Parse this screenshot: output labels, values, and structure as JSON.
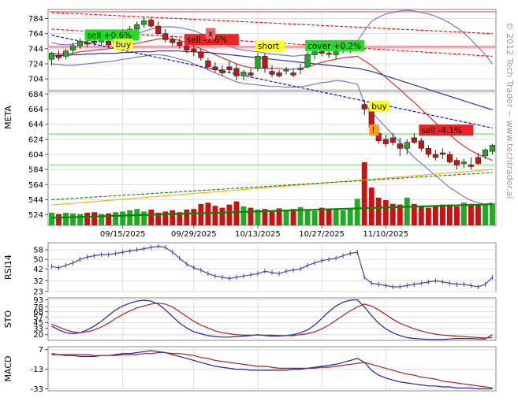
{
  "chart_data": [
    {
      "type": "candlestick",
      "ylabel": "META",
      "y_ticks": [
        524,
        544,
        564,
        584,
        604,
        624,
        644,
        664,
        684,
        704,
        724,
        744,
        764,
        784
      ],
      "ylim": [
        510,
        796
      ],
      "x_tick_labels": [
        "09/15/2025",
        "09/29/2025",
        "10/13/2025",
        "10/27/2025",
        "11/10/2025"
      ],
      "x_tick_bar_index": [
        10,
        20,
        29,
        38,
        47
      ],
      "ohlc": [
        [
          730,
          740,
          722,
          738
        ],
        [
          735,
          742,
          728,
          732
        ],
        [
          734,
          744,
          730,
          741
        ],
        [
          742,
          752,
          738,
          748
        ],
        [
          748,
          758,
          744,
          754
        ],
        [
          752,
          756,
          746,
          750
        ],
        [
          754,
          758,
          748,
          752
        ],
        [
          753,
          760,
          748,
          756
        ],
        [
          754,
          758,
          746,
          749
        ],
        [
          750,
          762,
          748,
          760
        ],
        [
          760,
          770,
          756,
          768
        ],
        [
          766,
          774,
          762,
          770
        ],
        [
          770,
          780,
          766,
          776
        ],
        [
          776,
          786,
          772,
          781
        ],
        [
          782,
          786,
          772,
          774
        ],
        [
          774,
          780,
          762,
          764
        ],
        [
          764,
          770,
          752,
          756
        ],
        [
          756,
          762,
          748,
          752
        ],
        [
          753,
          758,
          744,
          748
        ],
        [
          748,
          752,
          738,
          742
        ],
        [
          744,
          748,
          734,
          740
        ],
        [
          740,
          744,
          728,
          732
        ],
        [
          728,
          732,
          716,
          720
        ],
        [
          720,
          726,
          712,
          716
        ],
        [
          716,
          722,
          708,
          712
        ],
        [
          720,
          728,
          712,
          716
        ],
        [
          718,
          724,
          702,
          708
        ],
        [
          708,
          716,
          702,
          713
        ],
        [
          712,
          718,
          706,
          709
        ],
        [
          718,
          738,
          714,
          734
        ],
        [
          734,
          738,
          712,
          718
        ],
        [
          714,
          722,
          706,
          710
        ],
        [
          712,
          716,
          706,
          708
        ],
        [
          716,
          720,
          710,
          716
        ],
        [
          712,
          718,
          706,
          709
        ],
        [
          716,
          724,
          710,
          718
        ],
        [
          720,
          740,
          718,
          736
        ],
        [
          736,
          742,
          730,
          740
        ],
        [
          740,
          744,
          734,
          738
        ],
        [
          738,
          742,
          732,
          737
        ],
        [
          736,
          742,
          730,
          740
        ],
        [
          742,
          748,
          738,
          744
        ],
        [
          744,
          750,
          738,
          746
        ],
        [
          746,
          750,
          742,
          748
        ],
        [
          670,
          676,
          656,
          664
        ],
        [
          664,
          668,
          636,
          640
        ],
        [
          632,
          640,
          618,
          622
        ],
        [
          624,
          630,
          614,
          618
        ],
        [
          626,
          632,
          616,
          620
        ],
        [
          618,
          626,
          602,
          612
        ],
        [
          612,
          624,
          604,
          620
        ],
        [
          626,
          632,
          618,
          620
        ],
        [
          622,
          626,
          608,
          612
        ],
        [
          612,
          616,
          600,
          604
        ],
        [
          604,
          610,
          596,
          600
        ],
        [
          606,
          612,
          598,
          604
        ],
        [
          604,
          608,
          592,
          594
        ],
        [
          596,
          600,
          584,
          590
        ],
        [
          592,
          598,
          586,
          594
        ],
        [
          590,
          600,
          584,
          588
        ],
        [
          600,
          606,
          590,
          592
        ],
        [
          602,
          612,
          598,
          610
        ],
        [
          608,
          618,
          604,
          616
        ]
      ],
      "volume": [
        0.2,
        0.18,
        0.2,
        0.19,
        0.18,
        0.2,
        0.21,
        0.18,
        0.19,
        0.21,
        0.22,
        0.24,
        0.26,
        0.22,
        0.25,
        0.2,
        0.22,
        0.24,
        0.21,
        0.25,
        0.26,
        0.34,
        0.36,
        0.31,
        0.28,
        0.33,
        0.38,
        0.3,
        0.28,
        0.25,
        0.26,
        0.22,
        0.27,
        0.24,
        0.26,
        0.29,
        0.24,
        0.23,
        0.28,
        0.26,
        0.25,
        0.24,
        0.27,
        0.42,
        1.0,
        0.6,
        0.44,
        0.4,
        0.34,
        0.33,
        0.44,
        0.34,
        0.3,
        0.28,
        0.31,
        0.33,
        0.33,
        0.3,
        0.36,
        0.34,
        0.33,
        0.34,
        0.35
      ],
      "bollinger_upper": [
        752,
        750,
        749,
        750,
        752,
        754,
        756,
        758,
        758,
        759,
        760,
        762,
        764,
        767,
        770,
        772,
        773,
        773,
        772,
        770,
        768,
        764,
        760,
        756,
        752,
        748,
        744,
        742,
        741,
        740,
        738,
        737,
        736,
        735,
        734,
        735,
        736,
        738,
        740,
        744,
        748,
        750,
        752,
        754,
        768,
        780,
        786,
        790,
        792,
        794,
        795,
        794,
        792,
        790,
        787,
        783,
        778,
        772,
        765,
        756,
        746,
        736,
        724
      ],
      "bollinger_lower": [
        724,
        723,
        722,
        722,
        723,
        724,
        725,
        726,
        727,
        728,
        730,
        731,
        733,
        734,
        736,
        736,
        735,
        733,
        730,
        728,
        724,
        720,
        716,
        712,
        708,
        704,
        700,
        698,
        697,
        696,
        695,
        694,
        694,
        693,
        693,
        694,
        695,
        697,
        699,
        700,
        702,
        701,
        699,
        697,
        672,
        660,
        650,
        640,
        630,
        620,
        610,
        600,
        592,
        584,
        576,
        568,
        560,
        554,
        548,
        543,
        540,
        538,
        540
      ],
      "ma_short": [
        738,
        737,
        737,
        738,
        740,
        741,
        742,
        743,
        744,
        745,
        747,
        749,
        751,
        753,
        755,
        757,
        758,
        757,
        755,
        752,
        748,
        744,
        740,
        736,
        732,
        728,
        724,
        721,
        719,
        718,
        718,
        718,
        718,
        717,
        717,
        718,
        720,
        723,
        726,
        728,
        730,
        732,
        733,
        734,
        728,
        722,
        714,
        706,
        698,
        690,
        681,
        673,
        664,
        655,
        646,
        638,
        630,
        622,
        615,
        609,
        604,
        600,
        596
      ],
      "ma_long": [
        734,
        735,
        735,
        736,
        736,
        737,
        737,
        738,
        738,
        738,
        739,
        739,
        740,
        740,
        740,
        741,
        741,
        741,
        741,
        740,
        740,
        739,
        739,
        738,
        737,
        736,
        735,
        734,
        733,
        732,
        731,
        730,
        729,
        728,
        727,
        726,
        725,
        724,
        723,
        722,
        721,
        720,
        719,
        718,
        716,
        714,
        711,
        708,
        705,
        702,
        699,
        696,
        693,
        690,
        687,
        684,
        681,
        678,
        675,
        672,
        669,
        666,
        663
      ],
      "trend_lines": [
        {
          "color": "#ff0000",
          "style": "dashed",
          "from": [
            0,
            792
          ],
          "to": [
            62,
            764
          ]
        },
        {
          "color": "#ff0000",
          "style": "dashed",
          "from": [
            0,
            770
          ],
          "to": [
            62,
            734
          ]
        },
        {
          "color": "#0000cc",
          "style": "dashed",
          "from": [
            0,
            762
          ],
          "to": [
            62,
            639
          ]
        },
        {
          "color": "#ffaa00",
          "style": "solid",
          "from": [
            0,
            537
          ],
          "to": [
            62,
            584
          ]
        },
        {
          "color": "#008800",
          "style": "dashed",
          "from": [
            0,
            544
          ],
          "to": [
            62,
            580
          ]
        },
        {
          "color": "#008800",
          "style": "solid",
          "from": [
            0,
            520
          ],
          "to": [
            62,
            538
          ]
        }
      ],
      "bands": [
        {
          "color": "#f2a0a8",
          "y1": 792,
          "y2": 794
        },
        {
          "color": "#f2a0a8",
          "y1": 745,
          "y2": 748
        },
        {
          "color": "#c8c8c8",
          "y1": 686,
          "y2": 690
        },
        {
          "color": "#a8e8a8",
          "y1": 631,
          "y2": 632
        },
        {
          "color": "#a8e8a8",
          "y1": 590,
          "y2": 591
        }
      ],
      "annotations": [
        {
          "text": "sell +0.6%",
          "bg": "#22dd22",
          "bar": 5,
          "y": 758
        },
        {
          "text": "buy",
          "bg": "#ffff22",
          "bar": 9,
          "y": 746
        },
        {
          "text": "sell -1.6%",
          "bg": "#ee2222",
          "bar": 19,
          "y": 752
        },
        {
          "text": "x",
          "bg": "#ee6666",
          "bar": 22,
          "y": 760
        },
        {
          "text": "short",
          "bg": "#ffff22",
          "bar": 29,
          "y": 744
        },
        {
          "text": "cover +0.2%",
          "bg": "#22dd22",
          "bar": 36,
          "y": 744
        },
        {
          "text": "buy",
          "bg": "#ffff22",
          "bar": 45,
          "y": 664
        },
        {
          "text": "!",
          "bg": "#ff9922",
          "bar": 45,
          "y": 632
        },
        {
          "text": "sell -4.1%",
          "bg": "#ee2222",
          "bar": 52,
          "y": 632
        }
      ]
    },
    {
      "type": "line",
      "ylabel": "RSI14",
      "y_ticks": [
        23,
        32,
        42,
        50,
        58
      ],
      "ylim": [
        23,
        64
      ],
      "values": [
        44,
        43,
        45,
        47,
        50,
        52,
        53,
        54,
        54,
        55,
        56,
        57,
        58,
        59,
        60,
        61,
        60,
        56,
        51,
        46,
        43,
        41,
        38,
        36,
        35,
        34,
        35,
        36,
        37,
        38,
        40,
        39,
        38,
        40,
        41,
        42,
        45,
        47,
        49,
        50,
        51,
        53,
        55,
        56,
        35,
        30,
        29,
        28,
        27,
        27,
        28,
        29,
        30,
        31,
        32,
        31,
        30,
        29,
        29,
        28,
        27,
        29,
        35
      ]
    },
    {
      "type": "line",
      "ylabel": "STO",
      "y_ticks": [
        20,
        33,
        45,
        57,
        68,
        78,
        93
      ],
      "ylim": [
        8,
        97
      ],
      "series": [
        {
          "color": "#2222aa",
          "values": [
            38,
            30,
            24,
            22,
            24,
            30,
            38,
            48,
            60,
            72,
            80,
            86,
            90,
            92,
            90,
            84,
            72,
            58,
            44,
            34,
            26,
            22,
            18,
            16,
            15,
            15,
            16,
            17,
            18,
            20,
            18,
            17,
            17,
            18,
            20,
            24,
            30,
            40,
            54,
            68,
            80,
            88,
            92,
            93,
            78,
            60,
            44,
            32,
            24,
            18,
            14,
            12,
            11,
            10,
            10,
            10,
            11,
            12,
            12,
            12,
            11,
            11,
            20
          ]
        },
        {
          "color": "#aa2222",
          "values": [
            42,
            36,
            30,
            26,
            24,
            26,
            30,
            36,
            44,
            54,
            62,
            70,
            76,
            80,
            84,
            86,
            84,
            78,
            68,
            58,
            48,
            40,
            34,
            28,
            24,
            22,
            20,
            19,
            19,
            19,
            19,
            19,
            18,
            18,
            18,
            20,
            22,
            26,
            32,
            40,
            50,
            60,
            70,
            78,
            84,
            80,
            72,
            62,
            52,
            44,
            38,
            32,
            28,
            24,
            21,
            19,
            18,
            17,
            16,
            15,
            14,
            13,
            14
          ]
        }
      ]
    },
    {
      "type": "line",
      "ylabel": "MACD",
      "y_ticks": [
        -33,
        -13,
        7
      ],
      "ylim": [
        -35,
        10
      ],
      "series": [
        {
          "color": "#2222aa",
          "values": [
            3,
            2,
            1,
            1,
            0,
            0,
            0,
            1,
            1,
            2,
            3,
            3,
            4,
            5,
            6,
            5,
            4,
            2,
            0,
            -2,
            -4,
            -6,
            -8,
            -10,
            -11,
            -12,
            -13,
            -13,
            -14,
            -14,
            -14,
            -14,
            -14,
            -14,
            -13,
            -13,
            -12,
            -11,
            -10,
            -9,
            -8,
            -6,
            -4,
            -2,
            -6,
            -14,
            -19,
            -22,
            -24,
            -26,
            -27,
            -28,
            -29,
            -30,
            -30,
            -31,
            -31,
            -32,
            -32,
            -32,
            -33,
            -33,
            -33
          ]
        },
        {
          "color": "#aa2222",
          "values": [
            2,
            2,
            2,
            2,
            2,
            2,
            1,
            1,
            1,
            1,
            2,
            2,
            2,
            3,
            3,
            4,
            4,
            3,
            3,
            2,
            1,
            -1,
            -2,
            -4,
            -5,
            -6,
            -7,
            -8,
            -9,
            -10,
            -10,
            -11,
            -12,
            -12,
            -12,
            -12,
            -12,
            -12,
            -11,
            -11,
            -10,
            -9,
            -8,
            -7,
            -6,
            -8,
            -10,
            -12,
            -14,
            -16,
            -18,
            -19,
            -21,
            -22,
            -23,
            -25,
            -26,
            -27,
            -28,
            -29,
            -30,
            -31,
            -32
          ]
        }
      ]
    }
  ],
  "watermark": "© 2012 Tech Trader ~ www.techtrader.ai",
  "colors": {
    "up": "#22aa22",
    "down": "#cc1111",
    "bollinger": "#7777cc",
    "ma_short": "#cc3333",
    "ma_long": "#333399",
    "grid": "#dddddd",
    "bands": [
      "#f2a0a8",
      "#c8c8c8",
      "#a8e8a8"
    ]
  }
}
